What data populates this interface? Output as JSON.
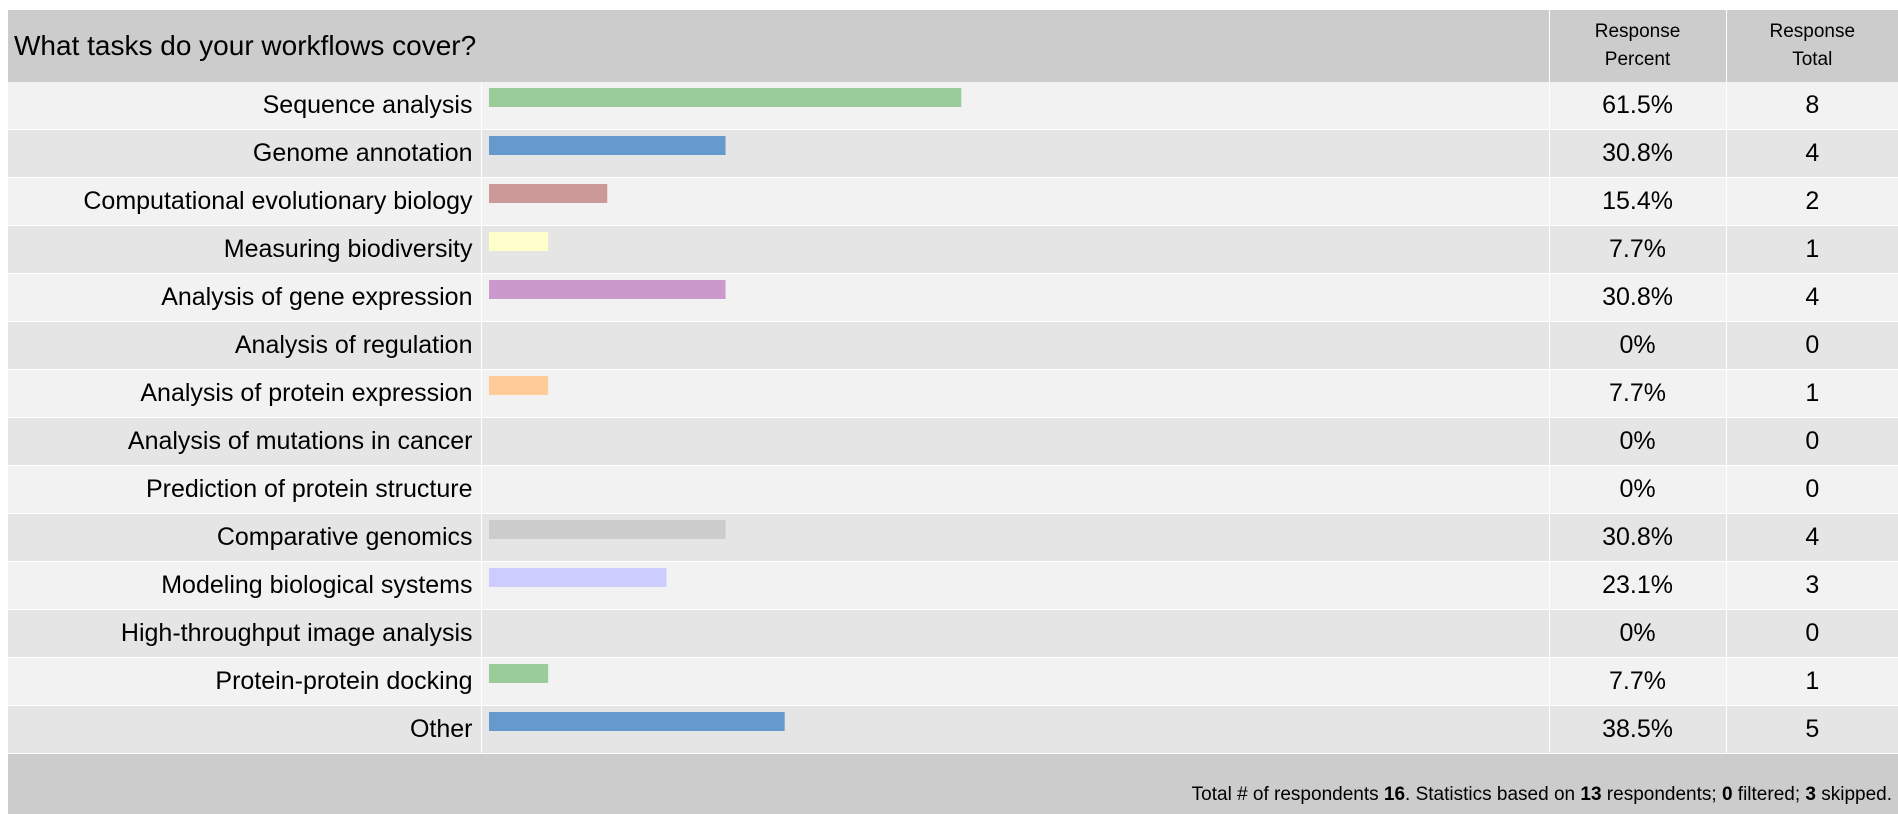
{
  "header": {
    "title": "What tasks do your workflows cover?",
    "col_percent_line1": "Response",
    "col_percent_line2": "Percent",
    "col_total_line1": "Response",
    "col_total_line2": "Total"
  },
  "chart_data": {
    "type": "bar",
    "title": "What tasks do your workflows cover?",
    "orientation": "horizontal",
    "xlim": [
      0,
      100
    ],
    "categories": [
      "Sequence analysis",
      "Genome annotation",
      "Computational evolutionary biology",
      "Measuring biodiversity",
      "Analysis of gene expression",
      "Analysis of regulation",
      "Analysis of protein expression",
      "Analysis of mutations in cancer",
      "Prediction of protein structure",
      "Comparative genomics",
      "Modeling biological systems",
      "High-throughput image analysis",
      "Protein-protein docking",
      "Other"
    ],
    "values": [
      61.5,
      30.8,
      15.4,
      7.7,
      30.8,
      0,
      7.7,
      0,
      0,
      30.8,
      23.1,
      0,
      7.7,
      38.5
    ],
    "percent_labels": [
      "61.5%",
      "30.8%",
      "15.4%",
      "7.7%",
      "30.8%",
      "0%",
      "7.7%",
      "0%",
      "0%",
      "30.8%",
      "23.1%",
      "0%",
      "7.7%",
      "38.5%"
    ],
    "totals": [
      "8",
      "4",
      "2",
      "1",
      "4",
      "0",
      "1",
      "0",
      "0",
      "4",
      "3",
      "0",
      "1",
      "5"
    ],
    "colors": [
      "#99cc99",
      "#6699cc",
      "#cc9999",
      "#ffffcc",
      "#cc99cc",
      "#ff9966",
      "#ffcc99",
      "#669999",
      "#99cccc",
      "#cccccc",
      "#ccccff",
      "#cc6666",
      "#99cc99",
      "#6699cc"
    ]
  },
  "footer": {
    "t1": "Total # of respondents ",
    "n1": "16",
    "t2": ". Statistics based on ",
    "n2": "13",
    "t3": " respondents; ",
    "n3": "0",
    "t4": " filtered; ",
    "n4": "3",
    "t5": " skipped."
  }
}
